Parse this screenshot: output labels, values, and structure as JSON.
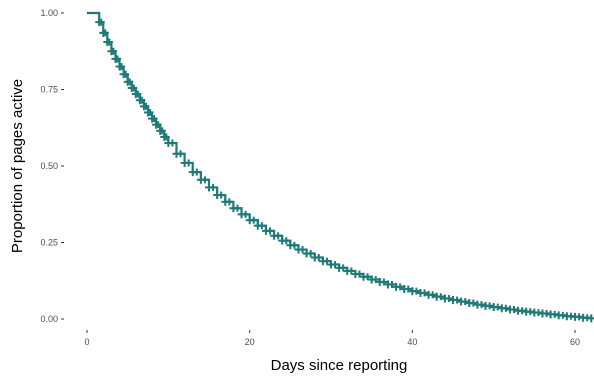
{
  "chart_data": {
    "type": "line",
    "subtype": "step (Kaplan-Meier survival curve with censor marks)",
    "title": "",
    "xlabel": "Days since reporting",
    "ylabel": "Proportion of pages active",
    "xlim": [
      0,
      62
    ],
    "ylim": [
      0,
      1
    ],
    "x_ticks": [
      0,
      20,
      40,
      60
    ],
    "x_tick_labels": [
      "0",
      "20",
      "40",
      "60"
    ],
    "y_ticks": [
      0,
      0.25,
      0.5,
      0.75,
      1
    ],
    "y_tick_labels": [
      "0.00",
      "0.25",
      "0.50",
      "0.75",
      "1.00"
    ],
    "grid": false,
    "legend": "none",
    "series_color": "#1f7a78",
    "series": [
      {
        "x": [
          0,
          1,
          1.5,
          2,
          2.5,
          3,
          3.5,
          4,
          4.5,
          5,
          5.5,
          6,
          6.5,
          7,
          7.5,
          8,
          8.5,
          9,
          9.5,
          10,
          11,
          12,
          13,
          14,
          15,
          16,
          17,
          18,
          19,
          20,
          21,
          22,
          23,
          24,
          25,
          26,
          27,
          28,
          29,
          30,
          31,
          32,
          33,
          34,
          35,
          36,
          37,
          38,
          39,
          40,
          41,
          42,
          43,
          44,
          45,
          46,
          47,
          48,
          49,
          50,
          51,
          52,
          53,
          54,
          55,
          56,
          57,
          58,
          59,
          60,
          61,
          62
        ],
        "y": [
          1.0,
          1.0,
          0.97,
          0.935,
          0.905,
          0.875,
          0.85,
          0.825,
          0.8,
          0.775,
          0.755,
          0.735,
          0.715,
          0.695,
          0.675,
          0.655,
          0.635,
          0.615,
          0.595,
          0.575,
          0.54,
          0.51,
          0.48,
          0.455,
          0.43,
          0.405,
          0.383,
          0.362,
          0.342,
          0.323,
          0.305,
          0.288,
          0.272,
          0.256,
          0.241,
          0.227,
          0.214,
          0.201,
          0.189,
          0.178,
          0.167,
          0.157,
          0.147,
          0.138,
          0.129,
          0.121,
          0.113,
          0.105,
          0.098,
          0.091,
          0.085,
          0.079,
          0.073,
          0.067,
          0.062,
          0.057,
          0.052,
          0.047,
          0.043,
          0.039,
          0.035,
          0.031,
          0.027,
          0.024,
          0.021,
          0.018,
          0.015,
          0.012,
          0.009,
          0.007,
          0.004,
          0.002
        ]
      }
    ]
  }
}
